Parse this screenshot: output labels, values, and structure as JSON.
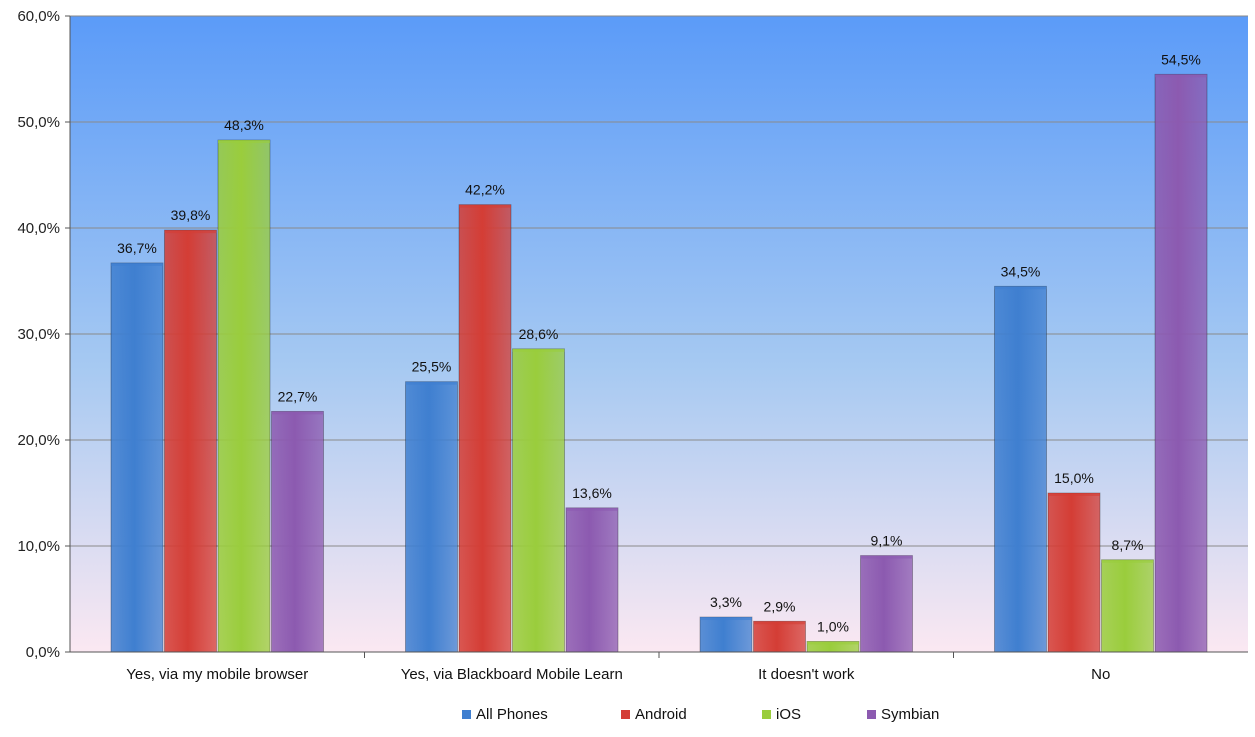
{
  "chart_data": {
    "type": "bar",
    "categories": [
      "Yes, via my mobile browser",
      "Yes, via Blackboard Mobile Learn",
      "It doesn't work",
      "No"
    ],
    "series": [
      {
        "name": "All Phones",
        "color": "#3f7fd0",
        "values": [
          36.7,
          25.5,
          3.3,
          34.5
        ],
        "labels": [
          "36,7%",
          "25,5%",
          "3,3%",
          "34,5%"
        ]
      },
      {
        "name": "Android",
        "color": "#d43d35",
        "values": [
          39.8,
          42.2,
          2.9,
          15.0
        ],
        "labels": [
          "39,8%",
          "42,2%",
          "2,9%",
          "15,0%"
        ]
      },
      {
        "name": "iOS",
        "color": "#9acd3c",
        "values": [
          48.3,
          28.6,
          1.0,
          8.7
        ],
        "labels": [
          "48,3%",
          "28,6%",
          "1,0%",
          "8,7%"
        ]
      },
      {
        "name": "Symbian",
        "color": "#8c5ab0",
        "values": [
          22.7,
          13.6,
          9.1,
          54.5
        ],
        "labels": [
          "22,7%",
          "13,6%",
          "9,1%",
          "54,5%"
        ]
      }
    ],
    "ylim": [
      0,
      60
    ],
    "yticks": [
      0,
      10,
      20,
      30,
      40,
      50,
      60
    ],
    "ytick_labels": [
      "0,0%",
      "10,0%",
      "20,0%",
      "30,0%",
      "40,0%",
      "50,0%",
      "60,0%"
    ],
    "grid": true,
    "legend_position": "bottom",
    "background_gradient": [
      "#5b9bf8",
      "#fbe8f2"
    ]
  }
}
